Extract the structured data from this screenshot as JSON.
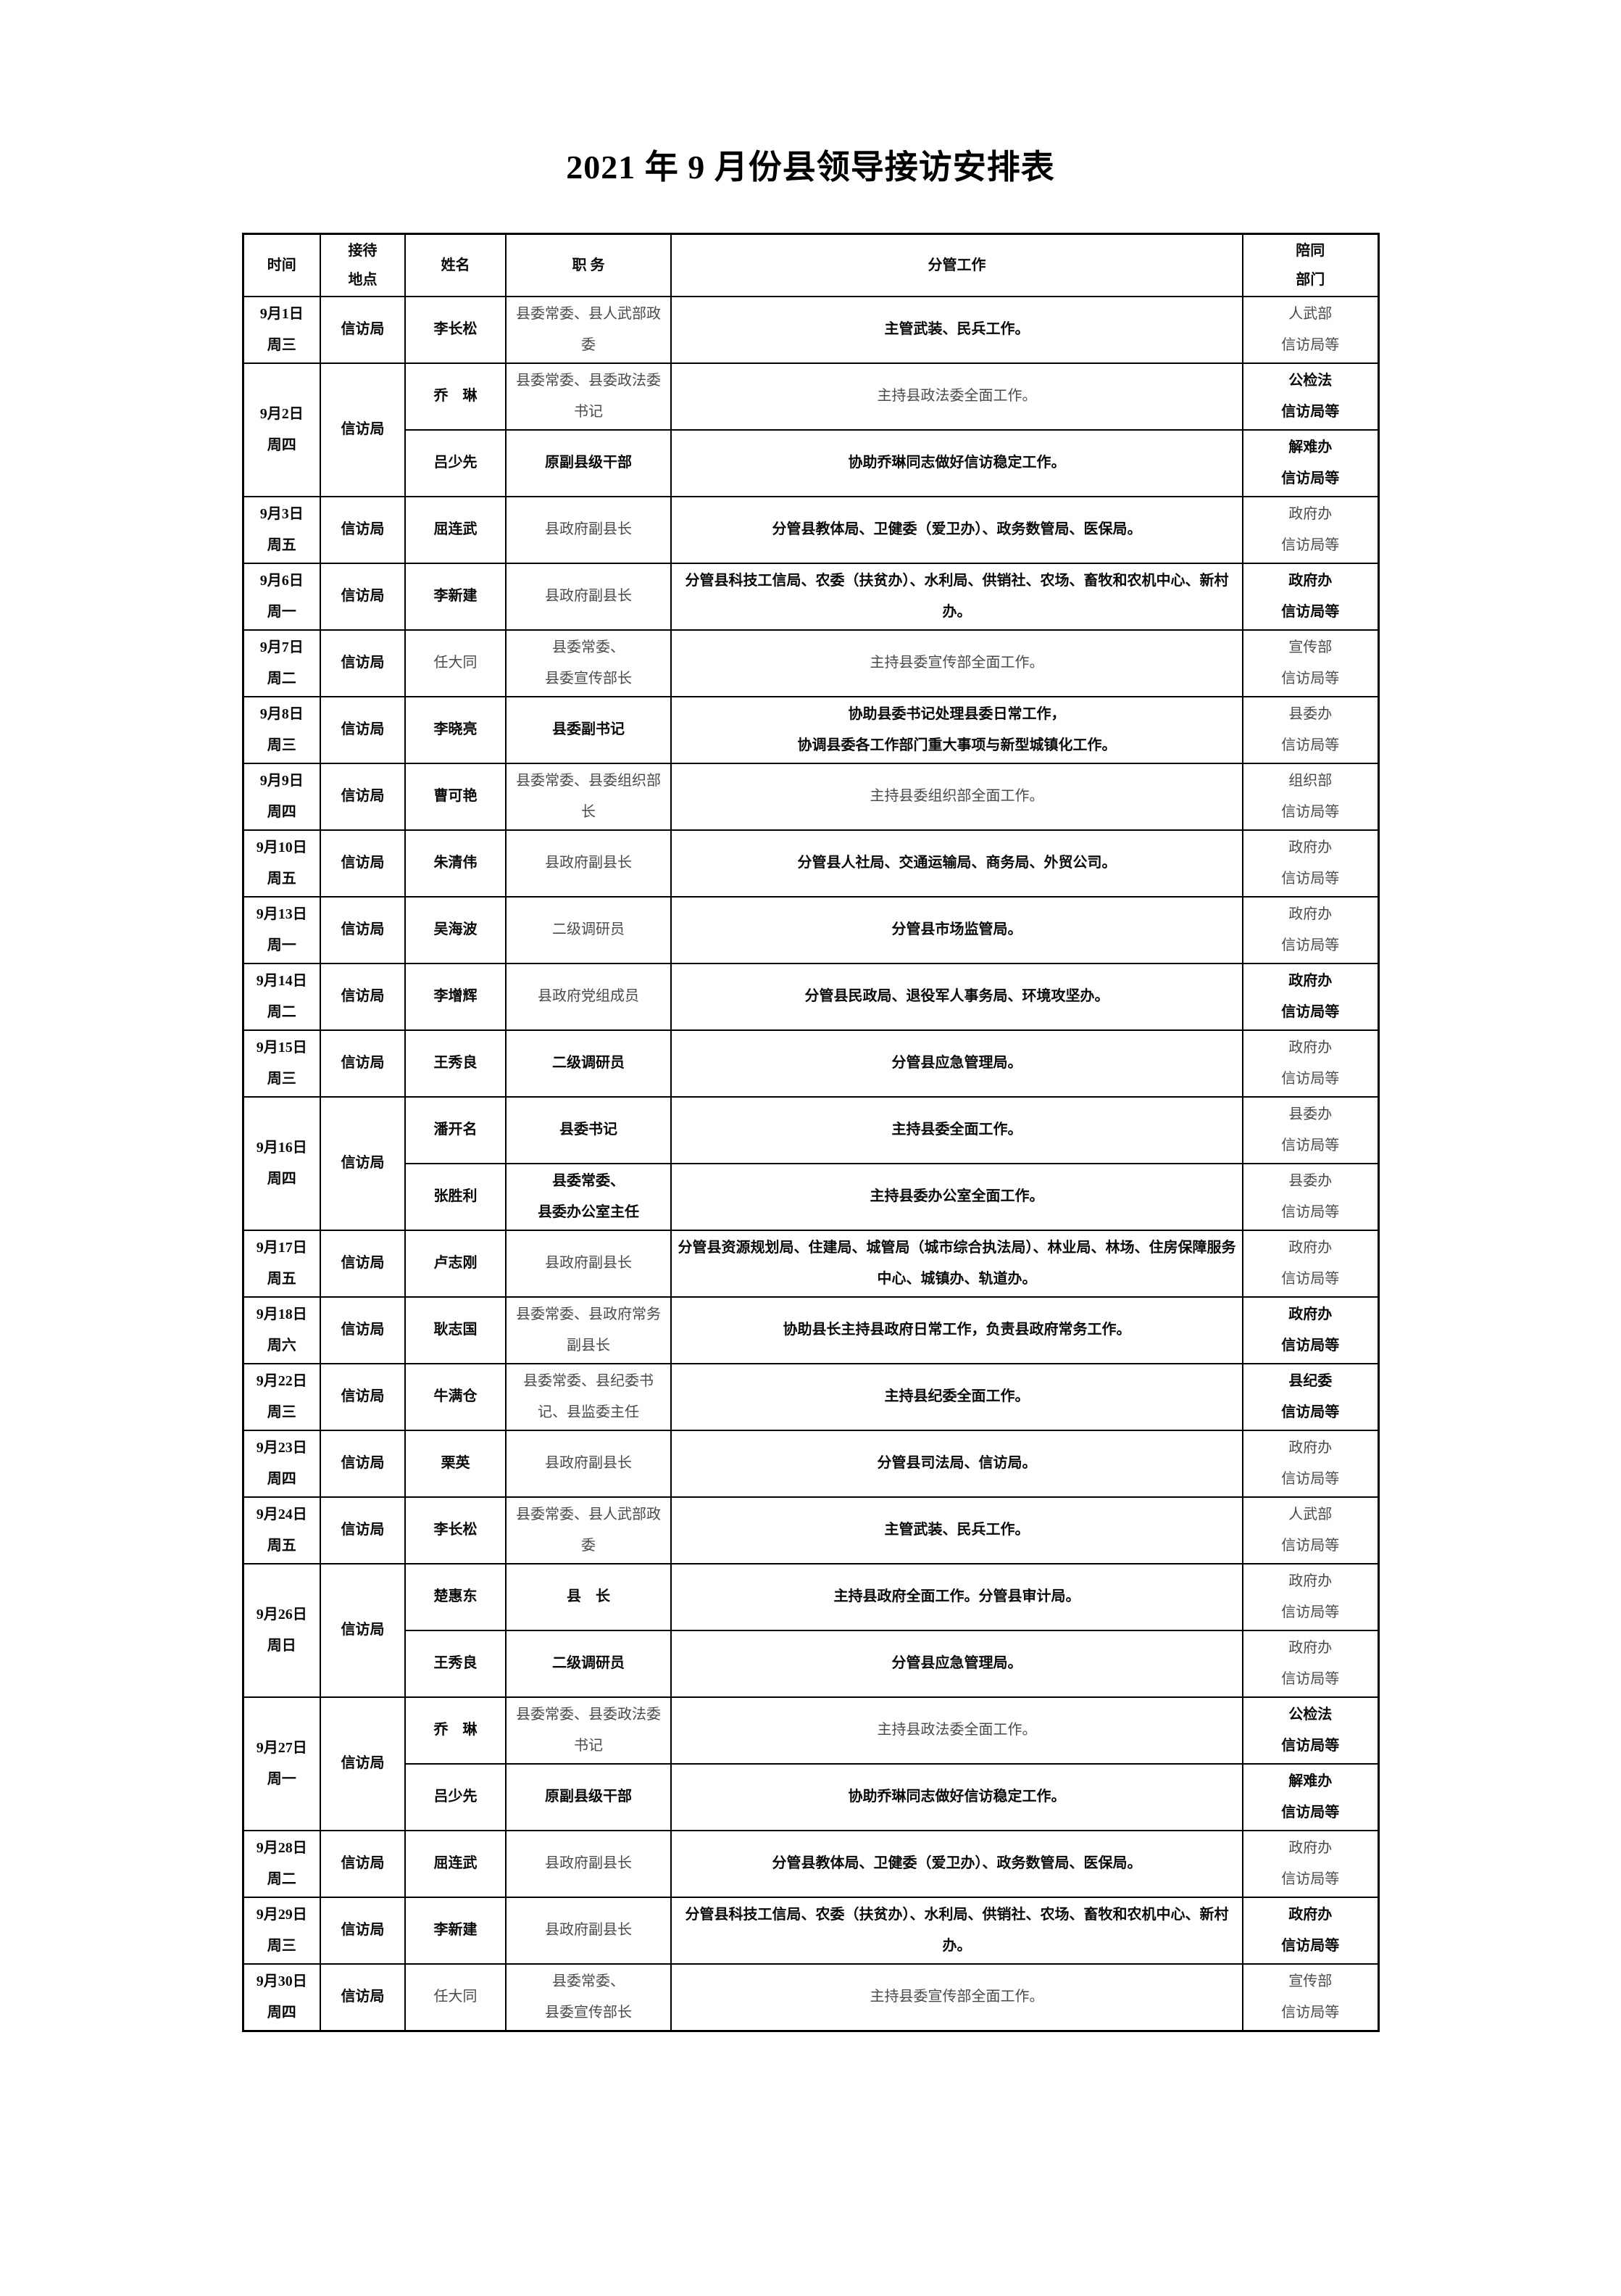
{
  "page_title": "2021 年 9 月份县领导接访安排表",
  "table": {
    "headers": {
      "time": "时间",
      "location": "接待\n地点",
      "name": "姓名",
      "job": "职 务",
      "work": "分管工作",
      "dept": "陪同\n部门"
    },
    "rows": [
      {
        "date": "9月1日",
        "weekday": "周三",
        "location": "信访局",
        "entries": [
          {
            "name": "李长松",
            "job": "县委常委、县人武部政委",
            "work": "主管武装、民兵工作。",
            "dept": "人武部\n信访局等",
            "faint": [
              "job",
              "dept"
            ]
          }
        ]
      },
      {
        "date": "9月2日",
        "weekday": "周四",
        "location": "信访局",
        "entries": [
          {
            "name": "乔　琳",
            "job": "县委常委、县委政法委书记",
            "work": "主持县政法委全面工作。",
            "dept": "公检法\n信访局等",
            "faint": [
              "job",
              "work"
            ]
          },
          {
            "name": "吕少先",
            "job": "原副县级干部",
            "work": "协助乔琳同志做好信访稳定工作。",
            "dept": "解难办\n信访局等",
            "faint": []
          }
        ]
      },
      {
        "date": "9月3日",
        "weekday": "周五",
        "location": "信访局",
        "entries": [
          {
            "name": "屈连武",
            "job": "县政府副县长",
            "work": "分管县教体局、卫健委（爱卫办）、政务数管局、医保局。",
            "dept": "政府办\n信访局等",
            "faint": [
              "job",
              "dept"
            ]
          }
        ]
      },
      {
        "date": "9月6日",
        "weekday": "周一",
        "location": "信访局",
        "entries": [
          {
            "name": "李新建",
            "job": "县政府副县长",
            "work": "分管县科技工信局、农委（扶贫办）、水利局、供销社、农场、畜牧和农机中心、新村办。",
            "dept": "政府办\n信访局等",
            "faint": [
              "job"
            ]
          }
        ]
      },
      {
        "date": "9月7日",
        "weekday": "周二",
        "location": "信访局",
        "entries": [
          {
            "name": "任大同",
            "job": "县委常委、\n县委宣传部长",
            "work": "主持县委宣传部全面工作。",
            "dept": "宣传部\n信访局等",
            "faint": [
              "name",
              "job",
              "work",
              "dept"
            ]
          }
        ]
      },
      {
        "date": "9月8日",
        "weekday": "周三",
        "location": "信访局",
        "entries": [
          {
            "name": "李晓亮",
            "job": "县委副书记",
            "work": "协助县委书记处理县委日常工作，\n协调县委各工作部门重大事项与新型城镇化工作。",
            "dept": "县委办\n信访局等",
            "faint": [
              "dept"
            ]
          }
        ]
      },
      {
        "date": "9月9日",
        "weekday": "周四",
        "location": "信访局",
        "entries": [
          {
            "name": "曹可艳",
            "job": "县委常委、县委组织部长",
            "work": "主持县委组织部全面工作。",
            "dept": "组织部\n信访局等",
            "faint": [
              "job",
              "work",
              "dept"
            ]
          }
        ]
      },
      {
        "date": "9月10日",
        "weekday": "周五",
        "location": "信访局",
        "entries": [
          {
            "name": "朱清伟",
            "job": "县政府副县长",
            "work": "分管县人社局、交通运输局、商务局、外贸公司。",
            "dept": "政府办\n信访局等",
            "faint": [
              "job",
              "dept"
            ]
          }
        ]
      },
      {
        "date": "9月13日",
        "weekday": "周一",
        "location": "信访局",
        "entries": [
          {
            "name": "吴海波",
            "job": "二级调研员",
            "work": "分管县市场监管局。",
            "dept": "政府办\n信访局等",
            "faint": [
              "job",
              "dept"
            ]
          }
        ]
      },
      {
        "date": "9月14日",
        "weekday": "周二",
        "location": "信访局",
        "entries": [
          {
            "name": "李增辉",
            "job": "县政府党组成员",
            "work": "分管县民政局、退役军人事务局、环境攻坚办。",
            "dept": "政府办\n信访局等",
            "faint": [
              "job"
            ]
          }
        ]
      },
      {
        "date": "9月15日",
        "weekday": "周三",
        "location": "信访局",
        "entries": [
          {
            "name": "王秀良",
            "job": "二级调研员",
            "work": "分管县应急管理局。",
            "dept": "政府办\n信访局等",
            "faint": [
              "dept"
            ]
          }
        ]
      },
      {
        "date": "9月16日",
        "weekday": "周四",
        "location": "信访局",
        "entries": [
          {
            "name": "潘开名",
            "job": "县委书记",
            "work": "主持县委全面工作。",
            "dept": "县委办\n信访局等",
            "faint": [
              "dept"
            ]
          },
          {
            "name": "张胜利",
            "job": "县委常委、\n县委办公室主任",
            "work": "主持县委办公室全面工作。",
            "dept": "县委办\n信访局等",
            "faint": [
              "dept"
            ]
          }
        ]
      },
      {
        "date": "9月17日",
        "weekday": "周五",
        "location": "信访局",
        "entries": [
          {
            "name": "卢志刚",
            "job": "县政府副县长",
            "work": "分管县资源规划局、住建局、城管局（城市综合执法局）、林业局、林场、住房保障服务中心、城镇办、轨道办。",
            "dept": "政府办\n信访局等",
            "faint": [
              "job",
              "dept"
            ]
          }
        ]
      },
      {
        "date": "9月18日",
        "weekday": "周六",
        "location": "信访局",
        "entries": [
          {
            "name": "耿志国",
            "job": "县委常委、县政府常务副县长",
            "work": "协助县长主持县政府日常工作，负责县政府常务工作。",
            "dept": "政府办\n信访局等",
            "faint": [
              "job"
            ]
          }
        ]
      },
      {
        "date": "9月22日",
        "weekday": "周三",
        "location": "信访局",
        "entries": [
          {
            "name": "牛满仓",
            "job": "县委常委、县纪委书记、县监委主任",
            "work": "主持县纪委全面工作。",
            "dept": "县纪委\n信访局等",
            "faint": [
              "job"
            ]
          }
        ]
      },
      {
        "date": "9月23日",
        "weekday": "周四",
        "location": "信访局",
        "entries": [
          {
            "name": "栗英",
            "job": "县政府副县长",
            "work": "分管县司法局、信访局。",
            "dept": "政府办\n信访局等",
            "faint": [
              "job",
              "dept"
            ]
          }
        ]
      },
      {
        "date": "9月24日",
        "weekday": "周五",
        "location": "信访局",
        "entries": [
          {
            "name": "李长松",
            "job": "县委常委、县人武部政委",
            "work": "主管武装、民兵工作。",
            "dept": "人武部\n信访局等",
            "faint": [
              "job",
              "dept"
            ]
          }
        ]
      },
      {
        "date": "9月26日",
        "weekday": "周日",
        "location": "信访局",
        "entries": [
          {
            "name": "楚惠东",
            "job": "县　长",
            "work": "主持县政府全面工作。分管县审计局。",
            "dept": "政府办\n信访局等",
            "faint": [
              "dept"
            ]
          },
          {
            "name": "王秀良",
            "job": "二级调研员",
            "work": "分管县应急管理局。",
            "dept": "政府办\n信访局等",
            "faint": [
              "dept"
            ]
          }
        ]
      },
      {
        "date": "9月27日",
        "weekday": "周一",
        "location": "信访局",
        "entries": [
          {
            "name": "乔　琳",
            "job": "县委常委、县委政法委书记",
            "work": "主持县政法委全面工作。",
            "dept": "公检法\n信访局等",
            "faint": [
              "job",
              "work"
            ]
          },
          {
            "name": "吕少先",
            "job": "原副县级干部",
            "work": "协助乔琳同志做好信访稳定工作。",
            "dept": "解难办\n信访局等",
            "faint": []
          }
        ]
      },
      {
        "date": "9月28日",
        "weekday": "周二",
        "location": "信访局",
        "entries": [
          {
            "name": "屈连武",
            "job": "县政府副县长",
            "work": "分管县教体局、卫健委（爱卫办）、政务数管局、医保局。",
            "dept": "政府办\n信访局等",
            "faint": [
              "job",
              "dept"
            ]
          }
        ]
      },
      {
        "date": "9月29日",
        "weekday": "周三",
        "location": "信访局",
        "entries": [
          {
            "name": "李新建",
            "job": "县政府副县长",
            "work": "分管县科技工信局、农委（扶贫办）、水利局、供销社、农场、畜牧和农机中心、新村办。",
            "dept": "政府办\n信访局等",
            "faint": [
              "job"
            ]
          }
        ]
      },
      {
        "date": "9月30日",
        "weekday": "周四",
        "location": "信访局",
        "entries": [
          {
            "name": "任大同",
            "job": "县委常委、\n县委宣传部长",
            "work": "主持县委宣传部全面工作。",
            "dept": "宣传部\n信访局等",
            "faint": [
              "name",
              "job",
              "work",
              "dept"
            ]
          }
        ]
      }
    ]
  }
}
